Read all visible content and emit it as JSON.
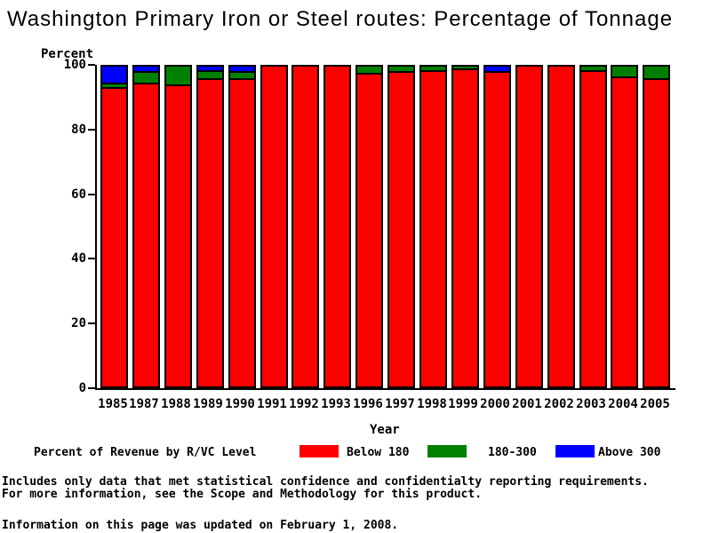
{
  "title": "Washington Primary Iron or Steel routes: Percentage of Tonnage",
  "chart_data": {
    "type": "bar",
    "stacked": true,
    "title": "Washington Primary Iron or Steel routes: Percentage of Tonnage",
    "ylabel": "Percent",
    "xlabel": "Year",
    "ylim": [
      0,
      100
    ],
    "yticks": [
      0,
      20,
      40,
      60,
      80,
      100
    ],
    "grid": false,
    "legend_position": "bottom",
    "categories": [
      "1985",
      "1987",
      "1988",
      "1989",
      "1990",
      "1991",
      "1992",
      "1993",
      "1996",
      "1997",
      "1998",
      "1999",
      "2000",
      "2001",
      "2002",
      "2003",
      "2004",
      "2005"
    ],
    "series": [
      {
        "name": "Below 180",
        "color": "#ff0000",
        "values": [
          93.5,
          95,
          94.5,
          96.5,
          96.5,
          100,
          100,
          100,
          98,
          98.5,
          99,
          99.5,
          98.5,
          100,
          100,
          99,
          97,
          96.5
        ]
      },
      {
        "name": "180-300",
        "color": "#008000",
        "values": [
          1.5,
          3.5,
          5.5,
          2.5,
          2,
          0,
          0,
          0,
          2,
          1.5,
          1,
          0.5,
          0,
          0,
          0,
          1,
          3,
          3.5
        ]
      },
      {
        "name": "Above 300",
        "color": "#0000ff",
        "values": [
          5,
          1.5,
          0,
          1,
          1.5,
          0,
          0,
          0,
          0,
          0,
          0,
          0,
          1.5,
          0,
          0,
          0,
          0,
          0
        ]
      }
    ]
  },
  "legend": {
    "title": "Percent of Revenue by R/VC Level",
    "items": [
      {
        "label": "Below 180",
        "color": "#ff0000"
      },
      {
        "label": "180-300",
        "color": "#008000"
      },
      {
        "label": "Above 300",
        "color": "#0000ff"
      }
    ]
  },
  "footer": {
    "line1": "Includes only data that met statistical confidence and confidentialty reporting requirements.",
    "line2": "For more information, see the Scope and Methodology for this product.",
    "line3": "Information on this page was updated on February 1, 2008."
  }
}
